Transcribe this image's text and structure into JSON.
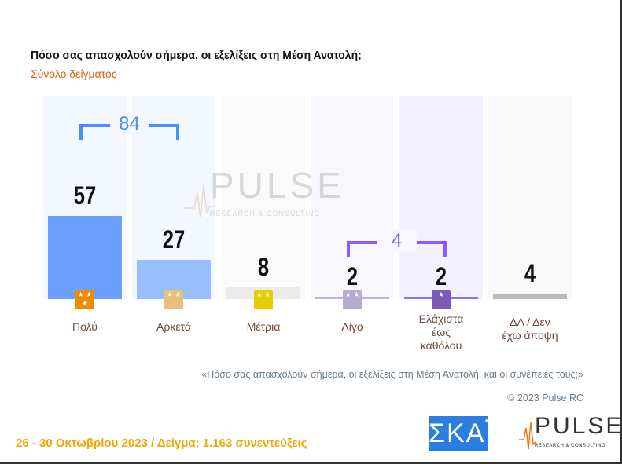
{
  "title": "Πόσο σας απασχολούν σήμερα, οι εξελίξεις στη Μέση Ανατολή;",
  "subtitle": "Σύνολο δείγματος",
  "chart_data": {
    "type": "bar",
    "categories": [
      "Πολύ",
      "Αρκετά",
      "Μέτρια",
      "Λίγο",
      "Ελάχιστα\nέως\nκαθόλου",
      "ΔΑ / Δεν\nέχω άποψη"
    ],
    "values": [
      57,
      27,
      8,
      2,
      2,
      4
    ],
    "value_labels": [
      "57",
      "27",
      "8",
      "2",
      "2",
      "4"
    ],
    "ylim": [
      0,
      100
    ],
    "colors": {
      "bars": [
        "#4a8bff",
        "#82b0ff",
        "#e8e8e8",
        "#b99cf5",
        "#7c4dff",
        "#aaaaaa"
      ],
      "backgrounds": [
        "#f3f7ff",
        "#f3f7ff",
        "#fafafa",
        "#f8f6ff",
        "#f3f0ff",
        "#f8f8f8"
      ],
      "icons": [
        "#ee8c00",
        "#e8c07a",
        "#e6cf00",
        "#b7acd0",
        "#7c5ab8",
        "none"
      ]
    },
    "icons": [
      "three-stars-icon",
      "two-stars-icon",
      "two-stars-icon",
      "two-stars-icon",
      "one-star-icon",
      ""
    ],
    "groups": [
      {
        "label": "84",
        "members": [
          0,
          1
        ],
        "color": "#4a8bff"
      },
      {
        "label": "4",
        "members": [
          3,
          4
        ],
        "color": "#8a5cff"
      }
    ]
  },
  "note": "«Πόσο  σας απασχολούν σήμερα, οι εξελίξεις στη Μέση Ανατολή, και οι συνέπειές τους;»",
  "copyright": "© 2023 Pulse RC",
  "footer": "26 - 30  Οκτωβρίου  2023  /  Δείγμα:  1.163 συνεντεύξεις",
  "logos": {
    "skai": "ΣΚΑΪ",
    "pulse": "PULSE",
    "pulse_sub": "RESEARCH & CONSULTING"
  },
  "watermark": {
    "word": "PULSE",
    "sub": "RESEARCH & CONSULTING"
  }
}
